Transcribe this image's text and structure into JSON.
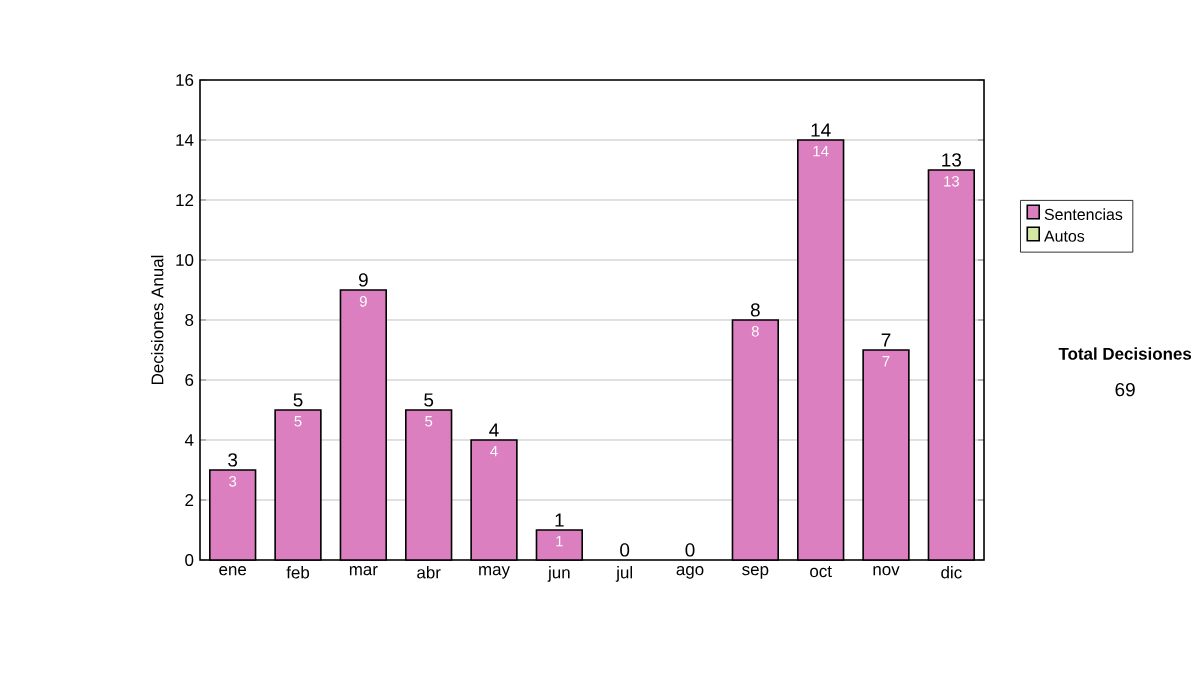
{
  "chart_data": {
    "type": "bar",
    "stacked": true,
    "ylabel": "Decisiones Anual",
    "categories": [
      "ene",
      "feb",
      "mar",
      "abr",
      "may",
      "jun",
      "jul",
      "ago",
      "sep",
      "oct",
      "nov",
      "dic"
    ],
    "series": [
      {
        "name": "Sentencias",
        "color": "#dc7fc0",
        "values": [
          3,
          5,
          9,
          5,
          4,
          1,
          0,
          0,
          8,
          14,
          7,
          13
        ],
        "value_labels": [
          "3",
          "5",
          "9",
          "5",
          "4",
          "1",
          null,
          null,
          "8",
          "14",
          "7",
          "13"
        ]
      },
      {
        "name": "Autos",
        "color": "#d4e8a4",
        "values": [
          0,
          0,
          0,
          0,
          0,
          0,
          0,
          0,
          0,
          0,
          0,
          0
        ]
      }
    ],
    "totals": [
      "3",
      "5",
      "9",
      "5",
      "4",
      "1",
      "0",
      "0",
      "8",
      "14",
      "7",
      "13"
    ],
    "ylim": [
      0,
      16
    ],
    "yticks": [
      0,
      2,
      4,
      6,
      8,
      10,
      12,
      14,
      16
    ],
    "grid": "y",
    "legend": "right",
    "annotations": [
      "Total Decisiones",
      "69"
    ]
  }
}
